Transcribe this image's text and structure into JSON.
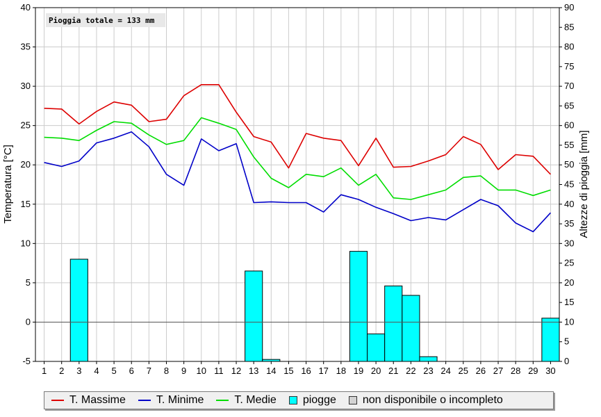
{
  "chart_data": {
    "type": "line",
    "annotation": "Pioggia totale = 133 mm",
    "x": [
      1,
      2,
      3,
      4,
      5,
      6,
      7,
      8,
      9,
      10,
      11,
      12,
      13,
      14,
      15,
      16,
      17,
      18,
      19,
      20,
      21,
      22,
      23,
      24,
      25,
      26,
      27,
      28,
      29,
      30
    ],
    "ylabel": "Temperatura [°C]",
    "ylabel2": "Altezze di pioggia [mm]",
    "ylim": [
      -5,
      40
    ],
    "y2lim": [
      0,
      90
    ],
    "y_ticks": [
      "40",
      "35",
      "30",
      "25",
      "20",
      "15",
      "10",
      "5",
      "0",
      "-5"
    ],
    "y2_ticks": [
      "90",
      "85",
      "80",
      "75",
      "70",
      "65",
      "60",
      "55",
      "50",
      "45",
      "40",
      "35",
      "30",
      "25",
      "20",
      "15",
      "10",
      "5",
      "0"
    ],
    "x_ticks": [
      "1",
      "2",
      "3",
      "4",
      "5",
      "6",
      "7",
      "8",
      "9",
      "10",
      "11",
      "12",
      "13",
      "14",
      "15",
      "16",
      "17",
      "18",
      "19",
      "20",
      "21",
      "22",
      "23",
      "24",
      "25",
      "26",
      "27",
      "28",
      "29",
      "30"
    ],
    "grid": true,
    "zero_line": 0,
    "series": [
      {
        "name": "T. Massime",
        "color": "#dd0000",
        "style": "line",
        "values": [
          27.2,
          27.1,
          25.2,
          26.8,
          28.0,
          27.6,
          25.5,
          25.8,
          28.8,
          30.2,
          30.2,
          26.7,
          23.6,
          22.9,
          19.6,
          24.0,
          23.4,
          23.1,
          19.9,
          23.4,
          19.7,
          19.8,
          20.5,
          21.3,
          23.6,
          22.6,
          19.4,
          21.3,
          21.1,
          18.8
        ]
      },
      {
        "name": "T. Minime",
        "color": "#0000c8",
        "style": "line",
        "values": [
          20.3,
          19.8,
          20.5,
          22.8,
          23.4,
          24.2,
          22.3,
          18.8,
          17.4,
          23.3,
          21.8,
          22.7,
          15.2,
          15.3,
          15.2,
          15.2,
          14.0,
          16.2,
          15.6,
          14.6,
          13.8,
          12.9,
          13.3,
          13.0,
          14.3,
          15.6,
          14.8,
          12.6,
          11.5,
          13.9
        ]
      },
      {
        "name": "T. Medie",
        "color": "#00dd00",
        "style": "line",
        "values": [
          23.5,
          23.4,
          23.1,
          24.4,
          25.5,
          25.3,
          23.8,
          22.6,
          23.1,
          26.0,
          25.3,
          24.5,
          21.0,
          18.3,
          17.1,
          18.8,
          18.5,
          19.6,
          17.4,
          18.8,
          15.8,
          15.6,
          16.2,
          16.8,
          18.4,
          18.6,
          16.8,
          16.8,
          16.1,
          16.8
        ]
      },
      {
        "name": "piogge",
        "color": "#00ffff",
        "style": "bar",
        "axis": "right",
        "values": [
          0,
          0,
          26,
          0,
          0,
          0,
          0,
          0,
          0,
          0,
          0,
          0,
          23,
          0.5,
          0,
          0,
          0,
          0,
          28,
          7,
          19.2,
          16.8,
          1.2,
          0,
          0,
          0,
          0,
          0,
          0,
          11
        ]
      }
    ],
    "legend": {
      "placement": "bottom",
      "items": [
        "T. Massime",
        "T. Minime",
        "T. Medie",
        "piogge",
        "non disponibile o incompleto"
      ],
      "na_color": "#d3d3d3"
    }
  }
}
